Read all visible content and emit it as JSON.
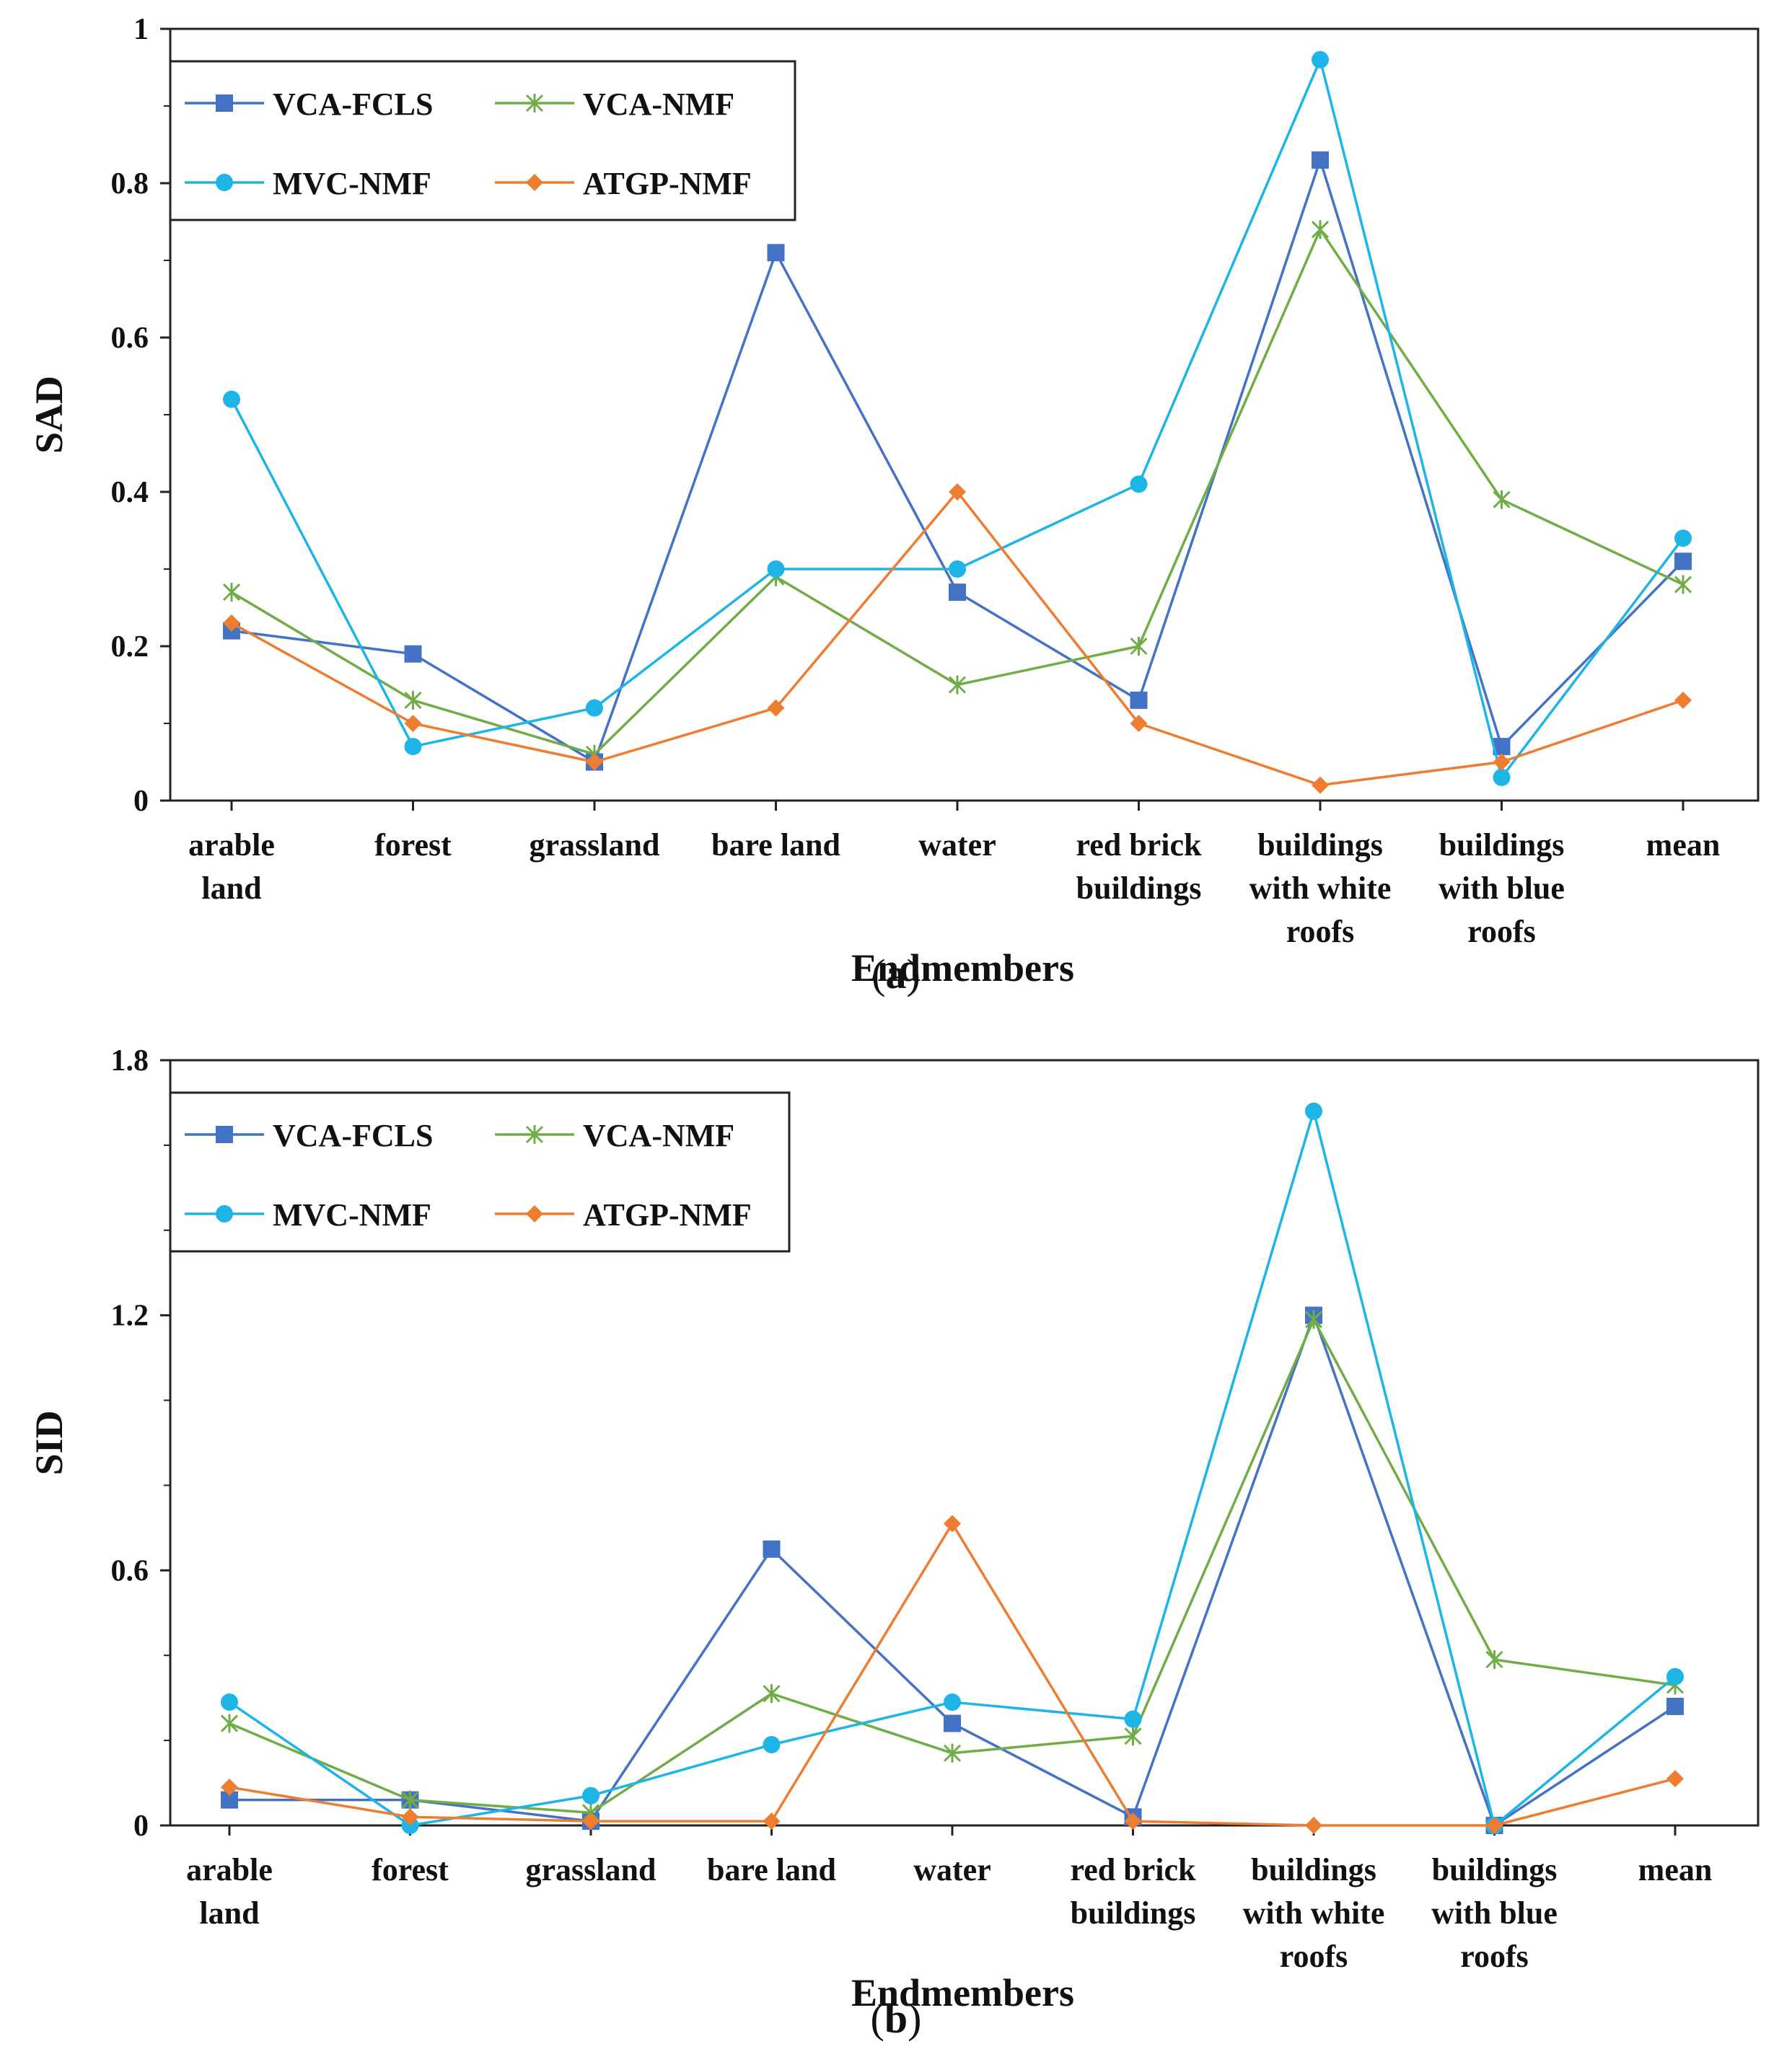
{
  "colors": {
    "VCA-FCLS": "#4472C4",
    "VCA-NMF": "#70AD47",
    "MVC-NMF": "#1EB4E6",
    "ATGP-NMF": "#ED7D31",
    "axis": "#222222"
  },
  "chart_data": [
    {
      "type": "line",
      "panel_label": "(a)",
      "caption": {
        "open": "(",
        "letter": "a",
        "close": ")"
      },
      "title": "",
      "xlabel": "Endmembers",
      "ylabel": "SAD",
      "ylim": [
        0,
        1
      ],
      "yticks": [
        0,
        0.2,
        0.4,
        0.6,
        0.8,
        1
      ],
      "ytick_labels": [
        "0",
        "0.2",
        "0.4",
        "0.6",
        "0.8",
        "1"
      ],
      "categories": [
        [
          "arable",
          "land"
        ],
        [
          "forest"
        ],
        [
          "grassland"
        ],
        [
          "bare land"
        ],
        [
          "water"
        ],
        [
          "red brick",
          "buildings"
        ],
        [
          "buildings",
          "with white",
          "roofs"
        ],
        [
          "buildings",
          "with blue",
          "roofs"
        ],
        [
          "mean"
        ]
      ],
      "series": [
        {
          "name": "VCA-FCLS",
          "marker": "square",
          "values": [
            0.22,
            0.19,
            0.05,
            0.71,
            0.27,
            0.13,
            0.83,
            0.07,
            0.31
          ]
        },
        {
          "name": "VCA-NMF",
          "marker": "asterisk",
          "values": [
            0.27,
            0.13,
            0.06,
            0.29,
            0.15,
            0.2,
            0.74,
            0.39,
            0.28
          ]
        },
        {
          "name": "MVC-NMF",
          "marker": "circle",
          "values": [
            0.52,
            0.07,
            0.12,
            0.3,
            0.3,
            0.41,
            0.96,
            0.03,
            0.34
          ]
        },
        {
          "name": "ATGP-NMF",
          "marker": "diamond",
          "values": [
            0.23,
            0.1,
            0.05,
            0.12,
            0.4,
            0.1,
            0.02,
            0.05,
            0.13
          ]
        }
      ],
      "legend": [
        "VCA-FCLS",
        "VCA-NMF",
        "MVC-NMF",
        "ATGP-NMF"
      ],
      "legend_position": "top-left"
    },
    {
      "type": "line",
      "panel_label": "(b)",
      "caption": {
        "open": "(",
        "letter": "b",
        "close": ")"
      },
      "title": "",
      "xlabel": "Endmembers",
      "ylabel": "SID",
      "ylim": [
        0,
        1.8
      ],
      "yticks": [
        0,
        0.6,
        1.2,
        1.8
      ],
      "ytick_labels": [
        "0",
        "0.6",
        "1.2",
        "1.8"
      ],
      "minor_ticks": [
        0.2,
        0.4,
        0.8,
        1.0,
        1.4,
        1.6
      ],
      "categories": [
        [
          "arable",
          "land"
        ],
        [
          "forest"
        ],
        [
          "grassland"
        ],
        [
          "bare land"
        ],
        [
          "water"
        ],
        [
          "red brick",
          "buildings"
        ],
        [
          "buildings",
          "with white",
          "roofs"
        ],
        [
          "buildings",
          "with blue",
          "roofs"
        ],
        [
          "mean"
        ]
      ],
      "series": [
        {
          "name": "VCA-FCLS",
          "marker": "square",
          "values": [
            0.06,
            0.06,
            0.01,
            0.65,
            0.24,
            0.02,
            1.2,
            0.0,
            0.28
          ]
        },
        {
          "name": "VCA-NMF",
          "marker": "asterisk",
          "values": [
            0.24,
            0.06,
            0.03,
            0.31,
            0.17,
            0.21,
            1.19,
            0.39,
            0.33
          ]
        },
        {
          "name": "MVC-NMF",
          "marker": "circle",
          "values": [
            0.29,
            0.0,
            0.07,
            0.19,
            0.29,
            0.25,
            1.68,
            0.0,
            0.35
          ]
        },
        {
          "name": "ATGP-NMF",
          "marker": "diamond",
          "values": [
            0.09,
            0.02,
            0.01,
            0.01,
            0.71,
            0.01,
            0.0,
            0.0,
            0.11
          ]
        }
      ],
      "legend": [
        "VCA-FCLS",
        "VCA-NMF",
        "MVC-NMF",
        "ATGP-NMF"
      ],
      "legend_position": "top-left"
    }
  ]
}
